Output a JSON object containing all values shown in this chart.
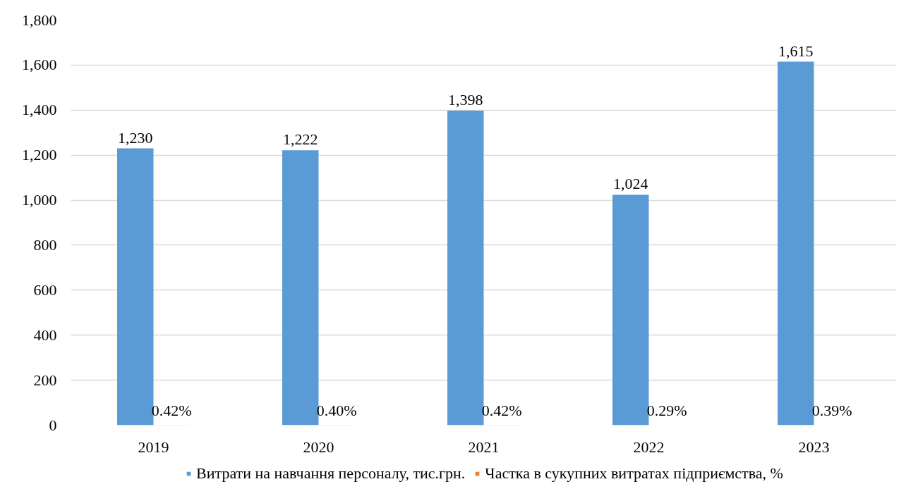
{
  "chart_data": {
    "type": "bar",
    "categories": [
      "2019",
      "2020",
      "2021",
      "2022",
      "2023"
    ],
    "series": [
      {
        "name": "Витрати на навчання персоналу, тис.грн.",
        "color": "#5b9bd5",
        "values": [
          1230,
          1222,
          1398,
          1024,
          1615
        ],
        "value_labels": [
          "1,230",
          "1,222",
          "1,398",
          "1,024",
          "1,615"
        ]
      },
      {
        "name": "Частка в сукупних витратах підприємства, %",
        "color": "#ed7d31",
        "values": [
          0.42,
          0.4,
          0.42,
          0.29,
          0.39
        ],
        "value_labels": [
          "0.42%",
          "0.40%",
          "0.42%",
          "0.29%",
          "0.39%"
        ]
      }
    ],
    "ylim": [
      0,
      1800
    ],
    "yticks": [
      0,
      200,
      400,
      600,
      800,
      {
        "value": 1000,
        "label": "1,000"
      },
      {
        "value": 1200,
        "label": "1,200"
      },
      {
        "value": 1400,
        "label": "1,400"
      },
      {
        "value": 1600,
        "label": "1,600"
      },
      {
        "value": 1800,
        "label": "1,800"
      }
    ],
    "grid": "y",
    "legend": "bottom"
  }
}
